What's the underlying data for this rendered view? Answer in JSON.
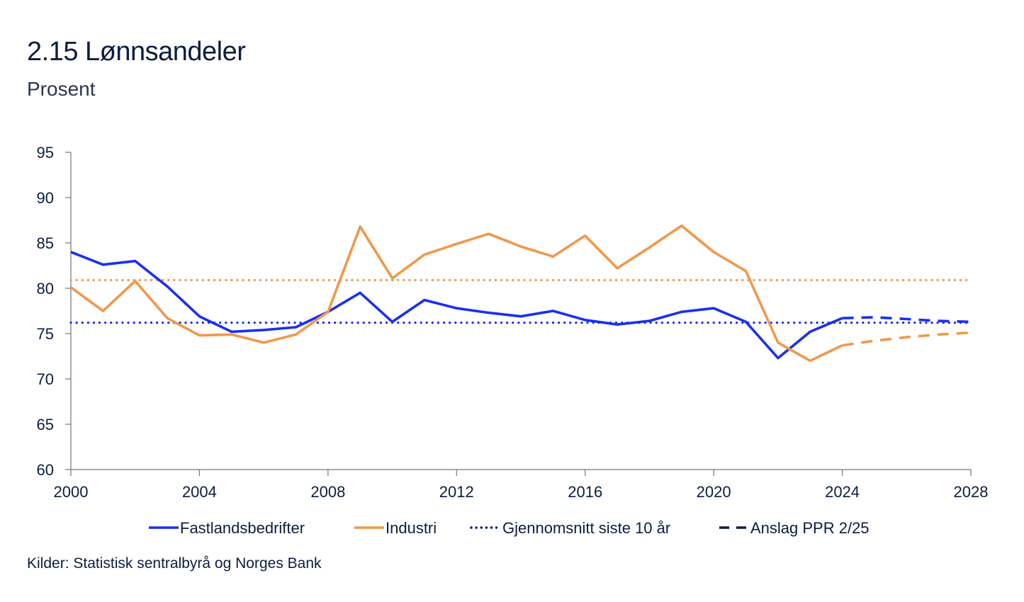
{
  "chart_data": {
    "type": "line",
    "title": "2.15 Lønnsandeler",
    "subtitle": "Prosent",
    "source": "Kilder: Statistisk sentralbyrå og Norges Bank",
    "xlim": [
      2000,
      2028
    ],
    "ylim": [
      60,
      95
    ],
    "x_ticks": [
      2000,
      2004,
      2008,
      2012,
      2016,
      2020,
      2024,
      2028
    ],
    "y_ticks": [
      60,
      65,
      70,
      75,
      80,
      85,
      90,
      95
    ],
    "series": [
      {
        "name": "Fastlandsbedrifter",
        "color": "#1a2ff0",
        "style": "solid",
        "x": [
          2000,
          2001,
          2002,
          2003,
          2004,
          2005,
          2006,
          2007,
          2008,
          2009,
          2010,
          2011,
          2012,
          2013,
          2014,
          2015,
          2016,
          2017,
          2018,
          2019,
          2020,
          2021,
          2022,
          2023,
          2024
        ],
        "values": [
          84.0,
          82.6,
          83.0,
          80.2,
          76.9,
          75.2,
          75.4,
          75.7,
          77.4,
          79.5,
          76.3,
          78.7,
          77.8,
          77.3,
          76.9,
          77.5,
          76.5,
          76.0,
          76.4,
          77.4,
          77.8,
          76.3,
          72.3,
          75.2,
          76.7
        ]
      },
      {
        "name": "Industri",
        "color": "#f0984a",
        "style": "solid",
        "x": [
          2000,
          2001,
          2002,
          2003,
          2004,
          2005,
          2006,
          2007,
          2008,
          2009,
          2010,
          2011,
          2012,
          2013,
          2014,
          2015,
          2016,
          2017,
          2018,
          2019,
          2020,
          2021,
          2022,
          2023,
          2024
        ],
        "values": [
          80.1,
          77.5,
          80.8,
          76.7,
          74.8,
          74.9,
          74.0,
          74.9,
          77.4,
          86.8,
          81.1,
          83.7,
          84.9,
          86.0,
          84.6,
          83.5,
          85.8,
          82.2,
          84.5,
          86.9,
          84.0,
          81.9,
          74.0,
          72.0,
          73.7
        ]
      },
      {
        "name": "Anslag Fastlandsbedrifter",
        "color": "#1a2ff0",
        "style": "dashed",
        "x": [
          2024,
          2025,
          2026,
          2027,
          2028
        ],
        "values": [
          76.7,
          76.8,
          76.6,
          76.4,
          76.3
        ]
      },
      {
        "name": "Anslag Industri",
        "color": "#f0984a",
        "style": "dashed",
        "x": [
          2024,
          2025,
          2026,
          2027,
          2028
        ],
        "values": [
          73.7,
          74.2,
          74.6,
          74.9,
          75.1
        ]
      }
    ],
    "averages": [
      {
        "name": "Gjennomsnitt Fastlandsbedrifter",
        "color": "#1a2ff0",
        "value": 76.2
      },
      {
        "name": "Gjennomsnitt Industri",
        "color": "#f0984a",
        "value": 80.9
      }
    ],
    "legend": [
      {
        "label": "Fastlandsbedrifter",
        "color": "#1a2ff0",
        "style": "solid"
      },
      {
        "label": "Industri",
        "color": "#f0984a",
        "style": "solid"
      },
      {
        "label": "Gjennomsnitt siste 10 år",
        "color": "#0b1e7a",
        "style": "dotted"
      },
      {
        "label": "Anslag PPR 2/25",
        "color": "#0b1e3f",
        "style": "dashed"
      }
    ]
  }
}
